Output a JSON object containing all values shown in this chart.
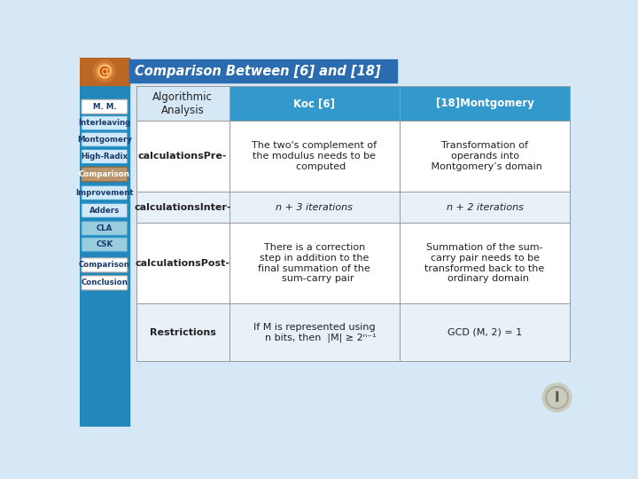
{
  "title": "Comparison Between [6] and [18]",
  "title_bg": "#2B6CB0",
  "slide_bg": "#D6E8F5",
  "left_bar_color": "#2288BB",
  "left_bar_bottom_color": "#CC6600",
  "nav_buttons": [
    {
      "label": "M. M.",
      "style": "white"
    },
    {
      "label": "Interleaving",
      "style": "blue_outline"
    },
    {
      "label": "Montgomery",
      "style": "blue_outline"
    },
    {
      "label": "High-Radix",
      "style": "blue_outline"
    },
    {
      "label": "Comparison",
      "style": "tan"
    },
    {
      "label": "Improvement",
      "style": "blue_outline"
    },
    {
      "label": "Adders",
      "style": "blue_outline"
    },
    {
      "label": "CLA",
      "style": "light_blue"
    },
    {
      "label": "CSK",
      "style": "light_blue"
    },
    {
      "label": "Comparison",
      "style": "white"
    },
    {
      "label": "Conclusion",
      "style": "white"
    }
  ],
  "table": {
    "col_headers": [
      "Algorithmic\nAnalysis",
      "Koc [6]",
      "[18]Montgomery"
    ],
    "rows": [
      {
        "row_header": "calculationsPre-",
        "col1": "The two's complement of\nthe modulus needs to be\n    computed",
        "col2": "Transformation of\noperands into\n Montgomery’s domain"
      },
      {
        "row_header": "calculationsInter-",
        "col1": "n + 3 iterations",
        "col2": "n + 2 iterations"
      },
      {
        "row_header": "calculationsPost-",
        "col1": "There is a correction\nstep in addition to the\nfinal summation of the\n  sum-carry pair",
        "col2": "Summation of the sum-\ncarry pair needs to be\ntransformed back to the\n  ordinary domain"
      },
      {
        "row_header": "Restrictions",
        "col1": "If M is represented using\n    n bits, then  |M| ≥ 2ⁿ⁻¹",
        "col2": "GCD (M, 2) = 1"
      }
    ],
    "header_bg": "#3399CC",
    "header_text": "#FFFFFF",
    "row_bg_even": "#FFFFFF",
    "row_bg_odd": "#E8F0F8",
    "border_color": "#999999",
    "cell_text_color": "#222222"
  }
}
